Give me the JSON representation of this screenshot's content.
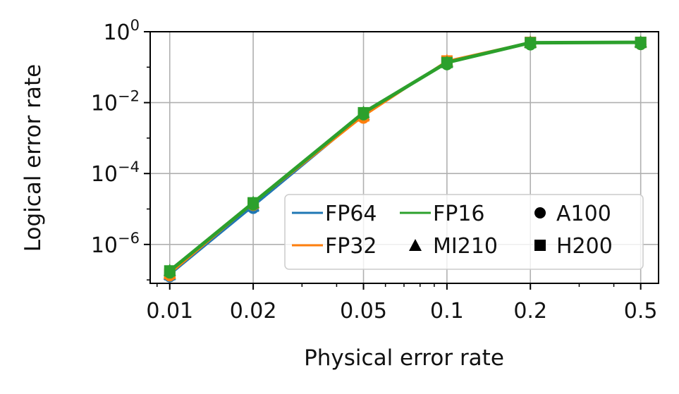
{
  "chart_data": {
    "type": "line",
    "xlabel": "Physical error rate",
    "ylabel": "Logical error rate",
    "xscale": "log",
    "yscale": "log",
    "xlim": [
      0.0085,
      0.58
    ],
    "ylim": [
      8e-08,
      1.0
    ],
    "grid": true,
    "legend_position": "lower-right",
    "xticks": [
      {
        "value": 0.01,
        "label": "0.01"
      },
      {
        "value": 0.02,
        "label": "0.02"
      },
      {
        "value": 0.05,
        "label": "0.05"
      },
      {
        "value": 0.1,
        "label": "0.1"
      },
      {
        "value": 0.2,
        "label": "0.2"
      },
      {
        "value": 0.5,
        "label": "0.5"
      }
    ],
    "yticks": [
      {
        "value": 1,
        "base": "10",
        "exp": "0"
      },
      {
        "value": 0.01,
        "base": "10",
        "exp": "−2"
      },
      {
        "value": 0.0001,
        "base": "10",
        "exp": "−4"
      },
      {
        "value": 1e-06,
        "base": "10",
        "exp": "−6"
      }
    ],
    "x": [
      0.01,
      0.02,
      0.05,
      0.1,
      0.2,
      0.5
    ],
    "series": [
      {
        "name": "FP64",
        "color": "#1f77b4",
        "values": [
          1.4e-07,
          1.2e-05,
          0.0045,
          0.14,
          0.5,
          0.5
        ]
      },
      {
        "name": "FP32",
        "color": "#ff7f0e",
        "values": [
          1.5e-07,
          1.45e-05,
          0.0042,
          0.15,
          0.5,
          0.5
        ]
      },
      {
        "name": "FP16",
        "color": "#2ca02c",
        "values": [
          1.8e-07,
          1.5e-05,
          0.0052,
          0.135,
          0.49,
          0.5
        ]
      }
    ],
    "markers": [
      {
        "name": "A100",
        "shape": "circle"
      },
      {
        "name": "MI210",
        "shape": "triangle"
      },
      {
        "name": "H200",
        "shape": "square"
      }
    ]
  }
}
